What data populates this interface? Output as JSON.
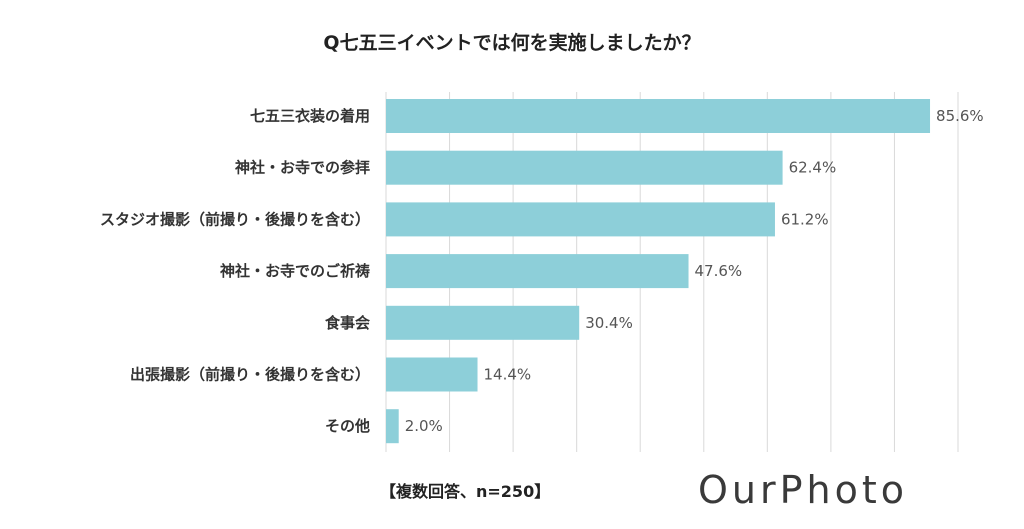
{
  "chart_data": {
    "type": "bar",
    "orientation": "horizontal",
    "title": "Q七五三イベントでは何を実施しましたか？",
    "categories": [
      "七五三衣装の着用",
      "神社・お寺での参拝",
      "スタジオ撮影（前撮り・後撮りを含む）",
      "神社・お寺でのご祈祷",
      "食事会",
      "出張撮影（前撮り・後撮りを含む）",
      "その他"
    ],
    "values": [
      85.6,
      62.4,
      61.2,
      47.6,
      30.4,
      14.4,
      2.0
    ],
    "value_labels": [
      "85.6%",
      "62.4%",
      "61.2%",
      "47.6%",
      "30.4%",
      "14.4%",
      "2.0%"
    ],
    "xlim": [
      0,
      90
    ],
    "gridlines": true,
    "bar_color": "#8dcfd9",
    "grid_color": "#d9d9d9"
  },
  "footnote": "【複数回答、n=250】",
  "brand": "OurPhoto"
}
